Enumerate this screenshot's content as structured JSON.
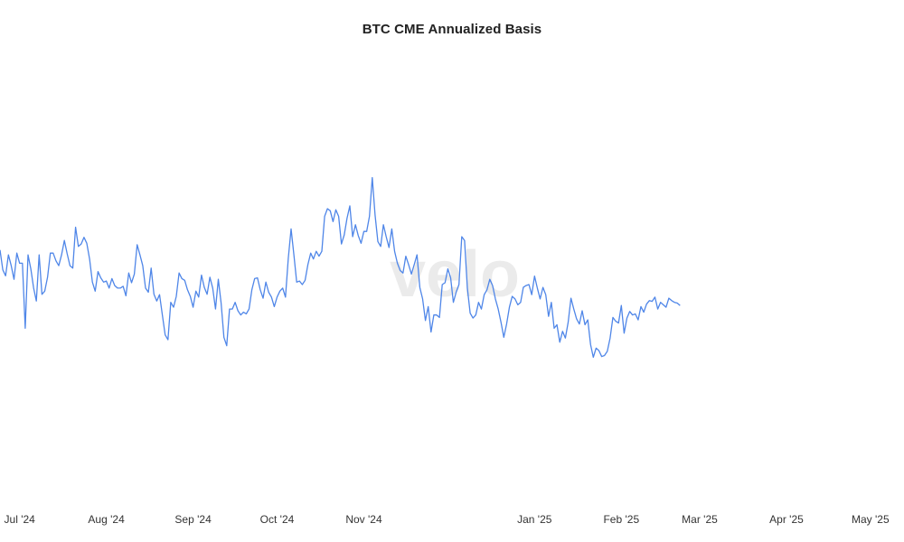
{
  "header": {
    "title": "BTC CME Annualized Basis"
  },
  "watermark": {
    "text": "velo"
  },
  "colors": {
    "line": "#4f86e8",
    "axis_text": "#333333",
    "background": "#ffffff"
  },
  "chart_data": {
    "type": "line",
    "title": "BTC CME Annualized Basis",
    "xlabel": "",
    "ylabel": "",
    "grid": false,
    "legend": "none",
    "x_axis": {
      "range": [
        "2024-06-24",
        "2025-05-13"
      ],
      "ticks": [
        {
          "date": "2024-07-01",
          "label": "Jul '24"
        },
        {
          "date": "2024-08-01",
          "label": "Aug '24"
        },
        {
          "date": "2024-09-01",
          "label": "Sep '24"
        },
        {
          "date": "2024-10-01",
          "label": "Oct '24"
        },
        {
          "date": "2024-11-01",
          "label": "Nov '24"
        },
        {
          "date": "2025-01-01",
          "label": "Jan '25"
        },
        {
          "date": "2025-02-01",
          "label": "Feb '25"
        },
        {
          "date": "2025-03-01",
          "label": "Mar '25"
        },
        {
          "date": "2025-04-01",
          "label": "Apr '25"
        },
        {
          "date": "2025-05-01",
          "label": "May '25"
        }
      ]
    },
    "y_axis": {
      "ticks": [],
      "range": [
        0,
        100
      ]
    },
    "series": [
      {
        "values": [
          [
            "2024-06-24",
            59.0
          ],
          [
            "2024-06-25",
            53.3
          ],
          [
            "2024-06-26",
            51.6
          ],
          [
            "2024-06-27",
            57.6
          ],
          [
            "2024-06-28",
            54.5
          ],
          [
            "2024-06-29",
            50.6
          ],
          [
            "2024-06-30",
            58.1
          ],
          [
            "2024-07-01",
            55.2
          ],
          [
            "2024-07-02",
            55.2
          ],
          [
            "2024-07-03",
            36.6
          ],
          [
            "2024-07-04",
            57.6
          ],
          [
            "2024-07-05",
            53.6
          ],
          [
            "2024-07-06",
            48.1
          ],
          [
            "2024-07-07",
            44.4
          ],
          [
            "2024-07-08",
            57.6
          ],
          [
            "2024-07-09",
            46.3
          ],
          [
            "2024-07-10",
            47.2
          ],
          [
            "2024-07-11",
            51.2
          ],
          [
            "2024-07-12",
            58.1
          ],
          [
            "2024-07-13",
            58.1
          ],
          [
            "2024-07-14",
            55.9
          ],
          [
            "2024-07-15",
            54.5
          ],
          [
            "2024-07-16",
            57.6
          ],
          [
            "2024-07-17",
            61.7
          ],
          [
            "2024-07-18",
            57.9
          ],
          [
            "2024-07-19",
            54.5
          ],
          [
            "2024-07-20",
            53.8
          ],
          [
            "2024-07-21",
            65.5
          ],
          [
            "2024-07-22",
            60.0
          ],
          [
            "2024-07-23",
            60.7
          ],
          [
            "2024-07-24",
            62.6
          ],
          [
            "2024-07-25",
            60.9
          ],
          [
            "2024-07-26",
            56.4
          ],
          [
            "2024-07-27",
            49.8
          ],
          [
            "2024-07-28",
            47.2
          ],
          [
            "2024-07-29",
            52.8
          ],
          [
            "2024-07-30",
            51.0
          ],
          [
            "2024-07-31",
            49.8
          ],
          [
            "2024-08-01",
            50.1
          ],
          [
            "2024-08-02",
            48.1
          ],
          [
            "2024-08-03",
            50.8
          ],
          [
            "2024-08-04",
            48.8
          ],
          [
            "2024-08-05",
            48.1
          ],
          [
            "2024-08-06",
            48.1
          ],
          [
            "2024-08-07",
            48.6
          ],
          [
            "2024-08-08",
            45.9
          ],
          [
            "2024-08-09",
            52.4
          ],
          [
            "2024-08-10",
            49.6
          ],
          [
            "2024-08-11",
            52.1
          ],
          [
            "2024-08-12",
            60.5
          ],
          [
            "2024-08-13",
            57.6
          ],
          [
            "2024-08-14",
            54.5
          ],
          [
            "2024-08-15",
            48.1
          ],
          [
            "2024-08-16",
            46.9
          ],
          [
            "2024-08-17",
            53.8
          ],
          [
            "2024-08-18",
            46.3
          ],
          [
            "2024-08-19",
            44.4
          ],
          [
            "2024-08-20",
            46.2
          ],
          [
            "2024-08-21",
            40.4
          ],
          [
            "2024-08-22",
            34.7
          ],
          [
            "2024-08-23",
            33.3
          ],
          [
            "2024-08-24",
            44.0
          ],
          [
            "2024-08-25",
            42.6
          ],
          [
            "2024-08-26",
            45.7
          ],
          [
            "2024-08-27",
            52.4
          ],
          [
            "2024-08-28",
            50.8
          ],
          [
            "2024-08-29",
            50.3
          ],
          [
            "2024-08-30",
            47.6
          ],
          [
            "2024-08-31",
            45.7
          ],
          [
            "2024-09-01",
            42.6
          ],
          [
            "2024-09-02",
            47.2
          ],
          [
            "2024-09-03",
            45.5
          ],
          [
            "2024-09-04",
            51.8
          ],
          [
            "2024-09-05",
            48.3
          ],
          [
            "2024-09-06",
            46.3
          ],
          [
            "2024-09-07",
            51.2
          ],
          [
            "2024-09-08",
            48.1
          ],
          [
            "2024-09-09",
            42.1
          ],
          [
            "2024-09-10",
            50.6
          ],
          [
            "2024-09-11",
            43.8
          ],
          [
            "2024-09-12",
            34.0
          ],
          [
            "2024-09-13",
            31.6
          ],
          [
            "2024-09-14",
            42.1
          ],
          [
            "2024-09-15",
            42.1
          ],
          [
            "2024-09-16",
            44.0
          ],
          [
            "2024-09-17",
            41.6
          ],
          [
            "2024-09-18",
            40.4
          ],
          [
            "2024-09-19",
            41.2
          ],
          [
            "2024-09-20",
            40.7
          ],
          [
            "2024-09-21",
            42.1
          ],
          [
            "2024-09-22",
            47.6
          ],
          [
            "2024-09-23",
            50.8
          ],
          [
            "2024-09-24",
            51.0
          ],
          [
            "2024-09-25",
            47.6
          ],
          [
            "2024-09-26",
            45.2
          ],
          [
            "2024-09-27",
            49.8
          ],
          [
            "2024-09-28",
            46.9
          ],
          [
            "2024-09-29",
            45.5
          ],
          [
            "2024-09-30",
            42.8
          ],
          [
            "2024-10-01",
            45.5
          ],
          [
            "2024-10-02",
            47.2
          ],
          [
            "2024-10-03",
            48.1
          ],
          [
            "2024-10-04",
            45.5
          ],
          [
            "2024-10-05",
            56.6
          ],
          [
            "2024-10-06",
            65.0
          ],
          [
            "2024-10-07",
            57.6
          ],
          [
            "2024-10-08",
            49.8
          ],
          [
            "2024-10-09",
            50.1
          ],
          [
            "2024-10-10",
            49.1
          ],
          [
            "2024-10-11",
            50.3
          ],
          [
            "2024-10-12",
            54.8
          ],
          [
            "2024-10-13",
            58.1
          ],
          [
            "2024-10-14",
            56.4
          ],
          [
            "2024-10-15",
            58.6
          ],
          [
            "2024-10-16",
            57.2
          ],
          [
            "2024-10-17",
            58.6
          ],
          [
            "2024-10-18",
            68.6
          ],
          [
            "2024-10-19",
            70.8
          ],
          [
            "2024-10-20",
            70.2
          ],
          [
            "2024-10-21",
            67.1
          ],
          [
            "2024-10-22",
            70.5
          ],
          [
            "2024-10-23",
            68.6
          ],
          [
            "2024-10-24",
            60.7
          ],
          [
            "2024-10-25",
            63.3
          ],
          [
            "2024-10-26",
            68.1
          ],
          [
            "2024-10-27",
            71.6
          ],
          [
            "2024-10-28",
            62.8
          ],
          [
            "2024-10-29",
            66.2
          ],
          [
            "2024-10-30",
            63.1
          ],
          [
            "2024-10-31",
            60.9
          ],
          [
            "2024-11-01",
            64.3
          ],
          [
            "2024-11-02",
            64.3
          ],
          [
            "2024-11-03",
            68.6
          ],
          [
            "2024-11-04",
            79.7
          ],
          [
            "2024-11-05",
            69.0
          ],
          [
            "2024-11-06",
            61.4
          ],
          [
            "2024-11-07",
            60.0
          ],
          [
            "2024-11-08",
            66.2
          ],
          [
            "2024-11-09",
            62.8
          ],
          [
            "2024-11-10",
            59.7
          ],
          [
            "2024-11-11",
            65.0
          ],
          [
            "2024-11-12",
            58.6
          ],
          [
            "2024-11-13",
            55.2
          ],
          [
            "2024-11-14",
            53.1
          ],
          [
            "2024-11-15",
            52.4
          ],
          [
            "2024-11-16",
            57.2
          ],
          [
            "2024-11-17",
            54.8
          ],
          [
            "2024-11-18",
            52.1
          ],
          [
            "2024-11-19",
            54.8
          ],
          [
            "2024-11-20",
            57.6
          ],
          [
            "2024-11-21",
            48.3
          ],
          [
            "2024-11-22",
            45.0
          ],
          [
            "2024-11-23",
            38.8
          ],
          [
            "2024-11-24",
            42.8
          ],
          [
            "2024-11-25",
            35.5
          ],
          [
            "2024-11-26",
            40.4
          ],
          [
            "2024-11-27",
            40.4
          ],
          [
            "2024-11-28",
            39.7
          ],
          [
            "2024-11-29",
            49.1
          ],
          [
            "2024-11-30",
            49.6
          ],
          [
            "2024-12-01",
            53.6
          ],
          [
            "2024-12-02",
            51.0
          ],
          [
            "2024-12-03",
            44.0
          ],
          [
            "2024-12-04",
            46.9
          ],
          [
            "2024-12-05",
            49.1
          ],
          [
            "2024-12-06",
            62.8
          ],
          [
            "2024-12-07",
            61.7
          ],
          [
            "2024-12-08",
            48.1
          ],
          [
            "2024-12-09",
            40.9
          ],
          [
            "2024-12-10",
            39.5
          ],
          [
            "2024-12-11",
            40.4
          ],
          [
            "2024-12-12",
            44.0
          ],
          [
            "2024-12-13",
            42.1
          ],
          [
            "2024-12-14",
            46.2
          ],
          [
            "2024-12-15",
            47.6
          ],
          [
            "2024-12-16",
            50.6
          ],
          [
            "2024-12-17",
            48.8
          ],
          [
            "2024-12-18",
            45.0
          ],
          [
            "2024-12-19",
            42.1
          ],
          [
            "2024-12-20",
            38.3
          ],
          [
            "2024-12-21",
            34.0
          ],
          [
            "2024-12-22",
            37.8
          ],
          [
            "2024-12-23",
            42.6
          ],
          [
            "2024-12-24",
            45.7
          ],
          [
            "2024-12-25",
            45.0
          ],
          [
            "2024-12-26",
            43.3
          ],
          [
            "2024-12-27",
            44.0
          ],
          [
            "2024-12-28",
            48.3
          ],
          [
            "2024-12-29",
            48.8
          ],
          [
            "2024-12-30",
            49.1
          ],
          [
            "2024-12-31",
            46.2
          ],
          [
            "2025-01-01",
            51.5
          ],
          [
            "2025-01-02",
            48.1
          ],
          [
            "2025-01-03",
            45.0
          ],
          [
            "2025-01-04",
            48.3
          ],
          [
            "2025-01-05",
            46.2
          ],
          [
            "2025-01-06",
            40.0
          ],
          [
            "2025-01-07",
            44.0
          ],
          [
            "2025-01-08",
            36.6
          ],
          [
            "2025-01-09",
            37.6
          ],
          [
            "2025-01-10",
            32.6
          ],
          [
            "2025-01-11",
            35.7
          ],
          [
            "2025-01-12",
            33.8
          ],
          [
            "2025-01-13",
            38.3
          ],
          [
            "2025-01-14",
            45.2
          ],
          [
            "2025-01-15",
            42.1
          ],
          [
            "2025-01-16",
            39.3
          ],
          [
            "2025-01-17",
            37.8
          ],
          [
            "2025-01-18",
            41.6
          ],
          [
            "2025-01-19",
            37.6
          ],
          [
            "2025-01-20",
            39.0
          ],
          [
            "2025-01-21",
            31.9
          ],
          [
            "2025-01-22",
            28.3
          ],
          [
            "2025-01-23",
            30.9
          ],
          [
            "2025-01-24",
            30.2
          ],
          [
            "2025-01-25",
            28.5
          ],
          [
            "2025-01-26",
            28.8
          ],
          [
            "2025-01-27",
            30.0
          ],
          [
            "2025-01-28",
            33.8
          ],
          [
            "2025-01-29",
            39.7
          ],
          [
            "2025-01-30",
            38.6
          ],
          [
            "2025-01-31",
            38.1
          ],
          [
            "2025-02-01",
            43.1
          ],
          [
            "2025-02-02",
            35.2
          ],
          [
            "2025-02-03",
            39.5
          ],
          [
            "2025-02-04",
            41.4
          ],
          [
            "2025-02-05",
            40.4
          ],
          [
            "2025-02-06",
            40.7
          ],
          [
            "2025-02-07",
            39.0
          ],
          [
            "2025-02-08",
            42.8
          ],
          [
            "2025-02-09",
            41.2
          ],
          [
            "2025-02-10",
            43.5
          ],
          [
            "2025-02-11",
            44.5
          ],
          [
            "2025-02-12",
            44.3
          ],
          [
            "2025-02-13",
            45.5
          ],
          [
            "2025-02-14",
            42.1
          ],
          [
            "2025-02-15",
            44.0
          ],
          [
            "2025-02-16",
            43.3
          ],
          [
            "2025-02-17",
            42.6
          ],
          [
            "2025-02-18",
            45.2
          ],
          [
            "2025-02-19",
            44.5
          ],
          [
            "2025-02-20",
            44.0
          ],
          [
            "2025-02-21",
            43.8
          ],
          [
            "2025-02-22",
            43.1
          ]
        ]
      }
    ]
  }
}
